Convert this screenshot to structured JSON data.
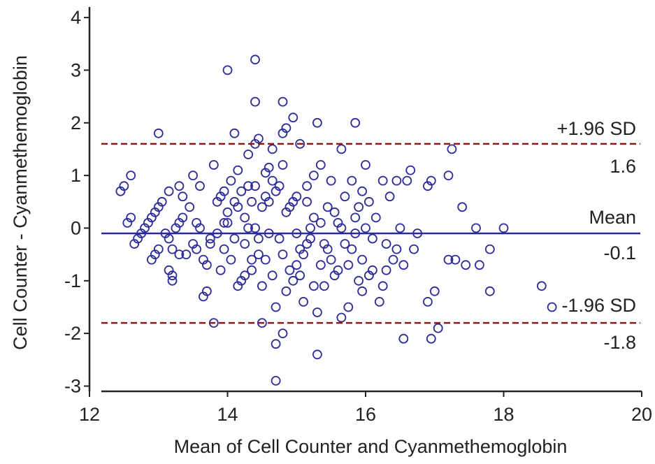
{
  "chart_data": {
    "type": "scatter",
    "xlabel": "Mean of Cell Counter and Cyanmethemoglobin",
    "ylabel": "Cell Counter - Cyanmethemoglobin",
    "xlim": [
      12,
      20
    ],
    "ylim": [
      -3.1,
      4.2
    ],
    "x_ticks": [
      "12",
      "14",
      "16",
      "18",
      "20"
    ],
    "y_ticks": [
      "-3",
      "-2",
      "-1",
      "0",
      "1",
      "2",
      "3",
      "4"
    ],
    "grid": false,
    "colors": {
      "points": "#2b2b9c",
      "mean_line": "#2b2b9c",
      "limit_lines": "#8b1a1a",
      "axes": "#222222"
    },
    "reference_lines": [
      {
        "key": "upper",
        "name": "+1.96 SD",
        "value": 1.6,
        "value_label": "1.6",
        "style": "dashed"
      },
      {
        "key": "mean",
        "name": "Mean",
        "value": -0.1,
        "value_label": "-0.1",
        "style": "solid"
      },
      {
        "key": "lower",
        "name": "-1.96 SD",
        "value": -1.8,
        "value_label": "-1.8",
        "style": "dashed"
      }
    ],
    "points": [
      [
        12.45,
        0.7
      ],
      [
        12.5,
        0.8
      ],
      [
        12.55,
        0.1
      ],
      [
        12.6,
        0.2
      ],
      [
        12.6,
        1.0
      ],
      [
        12.65,
        -0.3
      ],
      [
        12.7,
        -0.2
      ],
      [
        12.75,
        -0.1
      ],
      [
        12.8,
        0.0
      ],
      [
        12.85,
        0.1
      ],
      [
        12.9,
        0.2
      ],
      [
        12.9,
        -0.6
      ],
      [
        12.95,
        -0.5
      ],
      [
        12.95,
        0.3
      ],
      [
        13.0,
        0.4
      ],
      [
        13.0,
        1.8
      ],
      [
        13.0,
        -0.4
      ],
      [
        13.05,
        0.5
      ],
      [
        13.1,
        -0.1
      ],
      [
        13.15,
        0.7
      ],
      [
        13.15,
        -0.2
      ],
      [
        13.15,
        -0.8
      ],
      [
        13.2,
        -0.4
      ],
      [
        13.2,
        -0.9
      ],
      [
        13.2,
        -1.0
      ],
      [
        13.25,
        0.0
      ],
      [
        13.3,
        0.1
      ],
      [
        13.3,
        0.8
      ],
      [
        13.3,
        -0.5
      ],
      [
        13.35,
        0.6
      ],
      [
        13.35,
        0.2
      ],
      [
        13.4,
        -0.5
      ],
      [
        13.45,
        0.4
      ],
      [
        13.5,
        1.0
      ],
      [
        13.5,
        -0.3
      ],
      [
        13.55,
        -0.4
      ],
      [
        13.55,
        0.1
      ],
      [
        13.6,
        0.8
      ],
      [
        13.6,
        0.0
      ],
      [
        13.65,
        -0.6
      ],
      [
        13.65,
        -1.3
      ],
      [
        13.7,
        -0.7
      ],
      [
        13.7,
        -1.2
      ],
      [
        13.75,
        -0.2
      ],
      [
        13.75,
        -0.3
      ],
      [
        13.8,
        1.2
      ],
      [
        13.8,
        -1.8
      ],
      [
        13.85,
        0.5
      ],
      [
        13.85,
        -0.1
      ],
      [
        13.9,
        0.6
      ],
      [
        13.9,
        -0.8
      ],
      [
        13.95,
        -0.4
      ],
      [
        13.95,
        0.7
      ],
      [
        14.0,
        3.0
      ],
      [
        14.0,
        0.1
      ],
      [
        14.0,
        0.3
      ],
      [
        14.05,
        0.9
      ],
      [
        14.1,
        1.8
      ],
      [
        14.1,
        0.5
      ],
      [
        14.1,
        -0.2
      ],
      [
        14.15,
        1.1
      ],
      [
        14.15,
        -1.1
      ],
      [
        14.2,
        0.7
      ],
      [
        14.2,
        -1.0
      ],
      [
        14.25,
        0.2
      ],
      [
        14.25,
        -0.9
      ],
      [
        14.3,
        1.4
      ],
      [
        14.3,
        0.8
      ],
      [
        14.3,
        0.0
      ],
      [
        14.35,
        -0.6
      ],
      [
        14.35,
        -0.8
      ],
      [
        14.4,
        3.2
      ],
      [
        14.4,
        2.4
      ],
      [
        14.4,
        1.6
      ],
      [
        14.4,
        0.8
      ],
      [
        14.4,
        0.0
      ],
      [
        14.45,
        1.7
      ],
      [
        14.45,
        -0.5
      ],
      [
        14.45,
        -0.2
      ],
      [
        14.5,
        0.4
      ],
      [
        14.5,
        -1.1
      ],
      [
        14.5,
        -1.8
      ],
      [
        14.55,
        0.6
      ],
      [
        14.6,
        0.5
      ],
      [
        14.6,
        -0.1
      ],
      [
        14.65,
        0.9
      ],
      [
        14.65,
        1.5
      ],
      [
        14.7,
        -1.5
      ],
      [
        14.7,
        -2.2
      ],
      [
        14.7,
        -2.9
      ],
      [
        14.75,
        0.8
      ],
      [
        14.75,
        -0.2
      ],
      [
        14.8,
        2.4
      ],
      [
        14.8,
        1.8
      ],
      [
        14.8,
        1.2
      ],
      [
        14.8,
        -2.0
      ],
      [
        14.8,
        -0.5
      ],
      [
        14.85,
        1.9
      ],
      [
        14.85,
        0.3
      ],
      [
        14.9,
        0.4
      ],
      [
        14.9,
        -0.8
      ],
      [
        14.95,
        2.1
      ],
      [
        15.0,
        0.6
      ],
      [
        15.0,
        -0.7
      ],
      [
        15.0,
        -0.1
      ],
      [
        15.05,
        1.6
      ],
      [
        15.05,
        -0.9
      ],
      [
        15.1,
        -1.4
      ],
      [
        15.1,
        -0.5
      ],
      [
        15.15,
        0.8
      ],
      [
        15.2,
        0.0
      ],
      [
        15.2,
        -0.2
      ],
      [
        15.25,
        1.0
      ],
      [
        15.25,
        -1.1
      ],
      [
        15.3,
        2.0
      ],
      [
        15.3,
        -1.6
      ],
      [
        15.3,
        -2.4
      ],
      [
        15.35,
        1.2
      ],
      [
        15.35,
        0.1
      ],
      [
        15.4,
        -0.3
      ],
      [
        15.4,
        -1.1
      ],
      [
        15.45,
        0.4
      ],
      [
        15.5,
        -0.6
      ],
      [
        15.55,
        0.3
      ],
      [
        15.6,
        0.1
      ],
      [
        15.6,
        -0.8
      ],
      [
        15.65,
        1.5
      ],
      [
        15.65,
        -1.7
      ],
      [
        15.7,
        0.6
      ],
      [
        15.7,
        -0.3
      ],
      [
        15.75,
        -1.5
      ],
      [
        15.8,
        0.9
      ],
      [
        15.8,
        -0.4
      ],
      [
        15.85,
        2.0
      ],
      [
        15.85,
        -0.1
      ],
      [
        15.9,
        0.4
      ],
      [
        15.9,
        -1.0
      ],
      [
        15.95,
        -0.6
      ],
      [
        16.0,
        1.2
      ],
      [
        16.0,
        0.0
      ],
      [
        16.05,
        0.5
      ],
      [
        16.05,
        -0.9
      ],
      [
        16.1,
        -0.2
      ],
      [
        16.15,
        0.2
      ],
      [
        16.2,
        -1.4
      ],
      [
        16.25,
        0.9
      ],
      [
        16.3,
        -0.3
      ],
      [
        16.35,
        0.6
      ],
      [
        16.4,
        -0.6
      ],
      [
        16.45,
        0.9
      ],
      [
        16.5,
        0.0
      ],
      [
        16.55,
        -0.7
      ],
      [
        16.55,
        -2.1
      ],
      [
        16.6,
        0.9
      ],
      [
        16.65,
        1.1
      ],
      [
        16.7,
        -0.4
      ],
      [
        16.75,
        -0.1
      ],
      [
        16.9,
        0.8
      ],
      [
        16.9,
        -1.4
      ],
      [
        16.95,
        0.9
      ],
      [
        16.95,
        -2.1
      ],
      [
        17.0,
        -1.2
      ],
      [
        17.05,
        -1.9
      ],
      [
        17.2,
        1.0
      ],
      [
        17.2,
        -0.6
      ],
      [
        17.25,
        1.5
      ],
      [
        17.3,
        -0.6
      ],
      [
        17.4,
        0.4
      ],
      [
        17.45,
        -0.7
      ],
      [
        17.6,
        0.0
      ],
      [
        17.65,
        -0.7
      ],
      [
        17.8,
        -0.4
      ],
      [
        17.8,
        -1.2
      ],
      [
        18.0,
        0.0
      ],
      [
        18.55,
        -1.1
      ],
      [
        18.7,
        -1.5
      ],
      [
        14.55,
        1.05
      ],
      [
        14.6,
        1.15
      ],
      [
        14.7,
        0.7
      ],
      [
        14.95,
        0.5
      ],
      [
        15.15,
        -0.3
      ],
      [
        15.45,
        -0.4
      ],
      [
        15.55,
        -0.9
      ],
      [
        15.75,
        -0.7
      ],
      [
        15.95,
        -1.2
      ],
      [
        16.1,
        -0.8
      ],
      [
        14.15,
        0.4
      ],
      [
        14.25,
        -0.3
      ],
      [
        14.55,
        -0.6
      ],
      [
        14.85,
        -1.2
      ],
      [
        15.05,
        -0.4
      ],
      [
        15.25,
        0.2
      ],
      [
        15.5,
        0.9
      ],
      [
        15.85,
        0.2
      ],
      [
        16.25,
        -1.1
      ],
      [
        16.45,
        -0.4
      ],
      [
        13.95,
        0.1
      ],
      [
        14.05,
        -0.6
      ],
      [
        14.35,
        0.5
      ],
      [
        14.65,
        -0.9
      ],
      [
        14.95,
        -1.0
      ],
      [
        15.15,
        0.5
      ],
      [
        15.35,
        -0.7
      ],
      [
        15.65,
        0.0
      ],
      [
        15.95,
        0.7
      ],
      [
        16.3,
        -0.8
      ]
    ]
  }
}
